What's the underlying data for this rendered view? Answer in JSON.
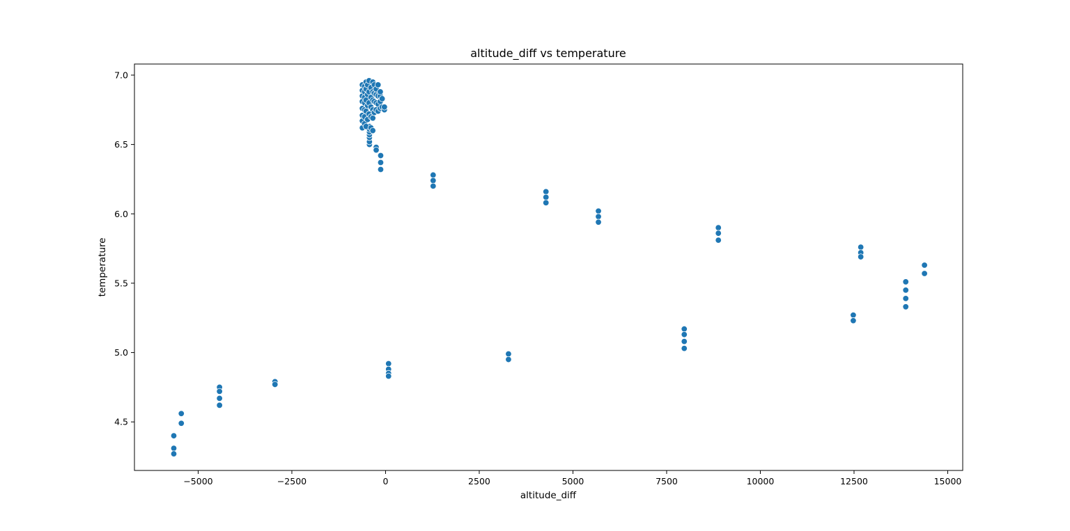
{
  "chart_data": {
    "type": "scatter",
    "title": "altitude_diff vs temperature",
    "xlabel": "altitude_diff",
    "ylabel": "temperature",
    "xlim": [
      -6700,
      15400
    ],
    "ylim": [
      4.15,
      7.08
    ],
    "xticks": [
      -5000,
      -2500,
      0,
      2500,
      5000,
      7500,
      10000,
      12500,
      15000
    ],
    "xtick_labels": [
      "−5000",
      "−2500",
      "0",
      "2500",
      "5000",
      "7500",
      "10000",
      "12500",
      "15000"
    ],
    "yticks": [
      4.5,
      5.0,
      5.5,
      6.0,
      6.5,
      7.0
    ],
    "ytick_labels": [
      "4.5",
      "5.0",
      "5.5",
      "6.0",
      "6.5",
      "7.0"
    ],
    "grid": false,
    "legend": "none",
    "marker_color": "#1f77b4",
    "marker_edge_color": "#ffffff",
    "points": [
      {
        "x": -5650,
        "y": 4.4
      },
      {
        "x": -5650,
        "y": 4.31
      },
      {
        "x": -5650,
        "y": 4.27
      },
      {
        "x": -5450,
        "y": 4.56
      },
      {
        "x": -5450,
        "y": 4.49
      },
      {
        "x": -4430,
        "y": 4.75
      },
      {
        "x": -4430,
        "y": 4.72
      },
      {
        "x": -4430,
        "y": 4.67
      },
      {
        "x": -4430,
        "y": 4.62
      },
      {
        "x": -2950,
        "y": 4.79
      },
      {
        "x": -2950,
        "y": 4.77
      },
      {
        "x": 80,
        "y": 4.92
      },
      {
        "x": 80,
        "y": 4.88
      },
      {
        "x": 80,
        "y": 4.85
      },
      {
        "x": 80,
        "y": 4.83
      },
      {
        "x": 3280,
        "y": 4.99
      },
      {
        "x": 3280,
        "y": 4.95
      },
      {
        "x": 7970,
        "y": 5.17
      },
      {
        "x": 7970,
        "y": 5.13
      },
      {
        "x": 7970,
        "y": 5.08
      },
      {
        "x": 7970,
        "y": 5.03
      },
      {
        "x": 12480,
        "y": 5.27
      },
      {
        "x": 12480,
        "y": 5.23
      },
      {
        "x": 12680,
        "y": 5.76
      },
      {
        "x": 12680,
        "y": 5.72
      },
      {
        "x": 12680,
        "y": 5.69
      },
      {
        "x": 13880,
        "y": 5.51
      },
      {
        "x": 13880,
        "y": 5.45
      },
      {
        "x": 13880,
        "y": 5.39
      },
      {
        "x": 13880,
        "y": 5.33
      },
      {
        "x": 14380,
        "y": 5.63
      },
      {
        "x": 14380,
        "y": 5.57
      },
      {
        "x": 8880,
        "y": 5.9
      },
      {
        "x": 8880,
        "y": 5.86
      },
      {
        "x": 8880,
        "y": 5.81
      },
      {
        "x": 5680,
        "y": 6.02
      },
      {
        "x": 5680,
        "y": 5.98
      },
      {
        "x": 5680,
        "y": 5.94
      },
      {
        "x": 4280,
        "y": 6.16
      },
      {
        "x": 4280,
        "y": 6.12
      },
      {
        "x": 4280,
        "y": 6.08
      },
      {
        "x": 1270,
        "y": 6.28
      },
      {
        "x": 1270,
        "y": 6.24
      },
      {
        "x": 1270,
        "y": 6.2
      },
      {
        "x": -130,
        "y": 6.42
      },
      {
        "x": -130,
        "y": 6.37
      },
      {
        "x": -130,
        "y": 6.32
      },
      {
        "x": -250,
        "y": 6.48
      },
      {
        "x": -250,
        "y": 6.46
      },
      {
        "x": -430,
        "y": 6.5
      },
      {
        "x": -430,
        "y": 6.52
      },
      {
        "x": -430,
        "y": 6.55
      },
      {
        "x": -430,
        "y": 6.57
      },
      {
        "x": -430,
        "y": 6.59
      },
      {
        "x": -430,
        "y": 6.61
      },
      {
        "x": -430,
        "y": 6.63
      },
      {
        "x": -620,
        "y": 6.62
      },
      {
        "x": -620,
        "y": 6.67
      },
      {
        "x": -620,
        "y": 6.71
      },
      {
        "x": -620,
        "y": 6.76
      },
      {
        "x": -620,
        "y": 6.81
      },
      {
        "x": -620,
        "y": 6.85
      },
      {
        "x": -620,
        "y": 6.89
      },
      {
        "x": -620,
        "y": 6.93
      },
      {
        "x": -560,
        "y": 6.65
      },
      {
        "x": -560,
        "y": 6.7
      },
      {
        "x": -560,
        "y": 6.75
      },
      {
        "x": -560,
        "y": 6.8
      },
      {
        "x": -560,
        "y": 6.84
      },
      {
        "x": -560,
        "y": 6.88
      },
      {
        "x": -560,
        "y": 6.92
      },
      {
        "x": -520,
        "y": 6.63
      },
      {
        "x": -520,
        "y": 6.74
      },
      {
        "x": -520,
        "y": 6.82
      },
      {
        "x": -520,
        "y": 6.9
      },
      {
        "x": -520,
        "y": 6.95
      },
      {
        "x": -480,
        "y": 6.68
      },
      {
        "x": -480,
        "y": 6.78
      },
      {
        "x": -480,
        "y": 6.86
      },
      {
        "x": -480,
        "y": 6.93
      },
      {
        "x": -440,
        "y": 6.72
      },
      {
        "x": -440,
        "y": 6.8
      },
      {
        "x": -440,
        "y": 6.88
      },
      {
        "x": -440,
        "y": 6.96
      },
      {
        "x": -390,
        "y": 6.62
      },
      {
        "x": -390,
        "y": 6.7
      },
      {
        "x": -390,
        "y": 6.77
      },
      {
        "x": -390,
        "y": 6.84
      },
      {
        "x": -390,
        "y": 6.91
      },
      {
        "x": -340,
        "y": 6.6
      },
      {
        "x": -340,
        "y": 6.69
      },
      {
        "x": -340,
        "y": 6.75
      },
      {
        "x": -340,
        "y": 6.82
      },
      {
        "x": -340,
        "y": 6.88
      },
      {
        "x": -340,
        "y": 6.95
      },
      {
        "x": -300,
        "y": 6.73
      },
      {
        "x": -300,
        "y": 6.81
      },
      {
        "x": -300,
        "y": 6.87
      },
      {
        "x": -300,
        "y": 6.93
      },
      {
        "x": -250,
        "y": 6.75
      },
      {
        "x": -250,
        "y": 6.8
      },
      {
        "x": -250,
        "y": 6.86
      },
      {
        "x": -250,
        "y": 6.9
      },
      {
        "x": -200,
        "y": 6.74
      },
      {
        "x": -200,
        "y": 6.79
      },
      {
        "x": -200,
        "y": 6.85
      },
      {
        "x": -200,
        "y": 6.93
      },
      {
        "x": -140,
        "y": 6.76
      },
      {
        "x": -140,
        "y": 6.81
      },
      {
        "x": -140,
        "y": 6.85
      },
      {
        "x": -140,
        "y": 6.88
      },
      {
        "x": -90,
        "y": 6.77
      },
      {
        "x": -90,
        "y": 6.83
      },
      {
        "x": -30,
        "y": 6.75
      },
      {
        "x": -30,
        "y": 6.77
      }
    ]
  }
}
